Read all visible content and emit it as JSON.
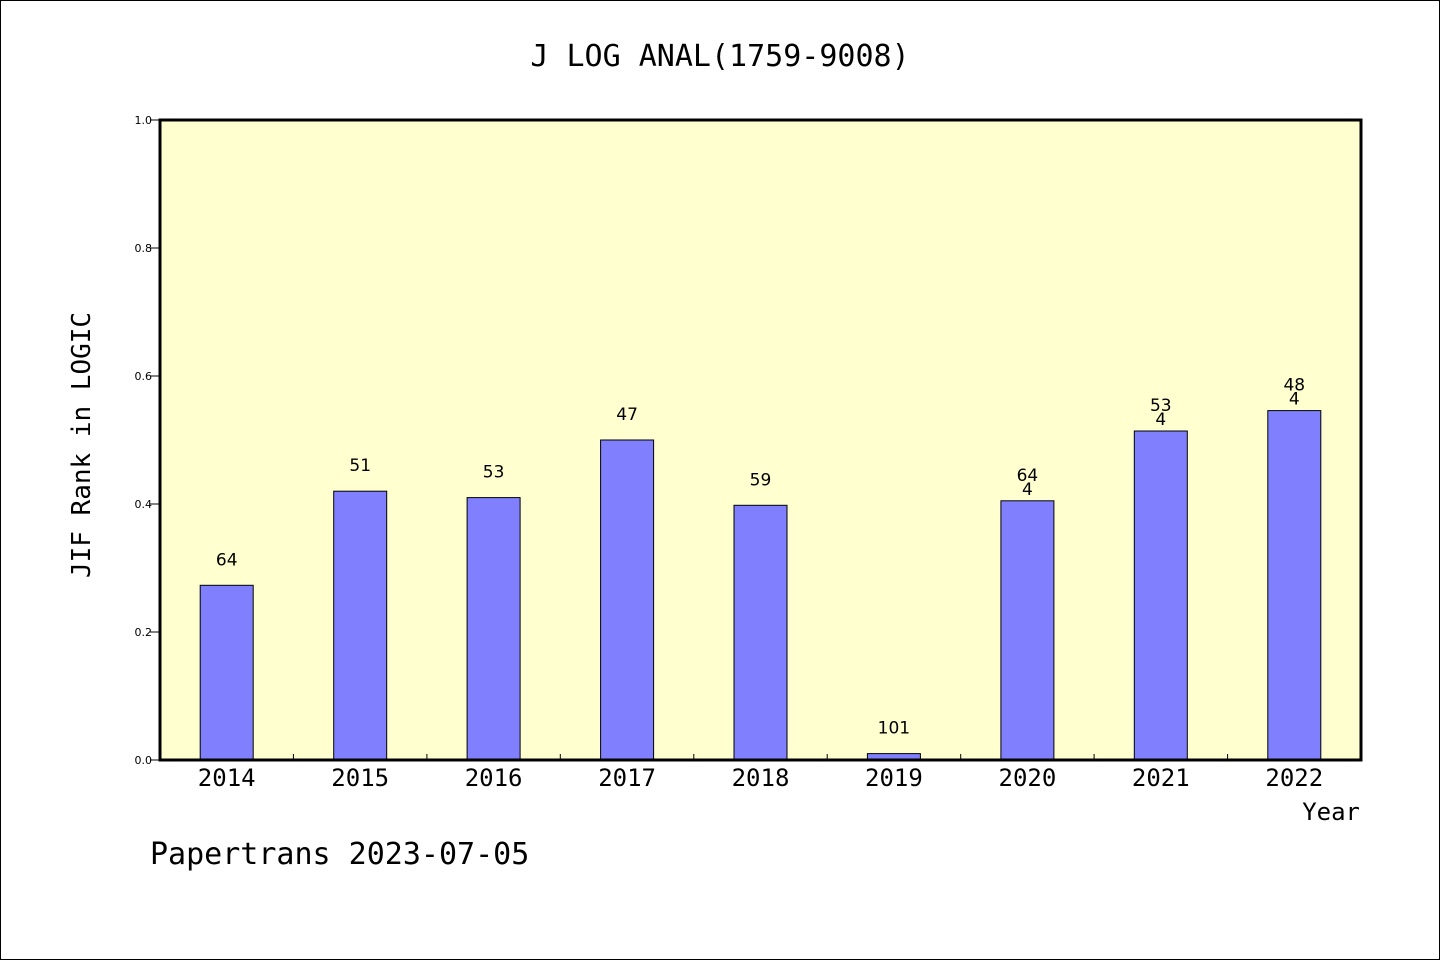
{
  "chart_data": {
    "type": "bar",
    "title": "J LOG ANAL(1759-9008)",
    "xlabel": "Year",
    "ylabel": "JIF Rank in LOGIC",
    "categories": [
      "2014",
      "2015",
      "2016",
      "2017",
      "2018",
      "2019",
      "2020",
      "2021",
      "2022"
    ],
    "values": [
      0.273,
      0.42,
      0.41,
      0.5,
      0.398,
      0.01,
      0.405,
      0.514,
      0.546
    ],
    "bar_labels": [
      "64",
      "51",
      "53",
      "47",
      "59",
      "101",
      "64\n4",
      "53\n4",
      "48\n4"
    ],
    "ylim": [
      0,
      1.0
    ],
    "yticks": [
      "0.0",
      "0.2",
      "0.4",
      "0.6",
      "0.8",
      "1.0"
    ],
    "grid": false,
    "legend": "none",
    "colors": {
      "bar": "#8080ff",
      "plot_background": "#ffffd0",
      "axis": "#000000"
    }
  },
  "footer": {
    "credit": "Papertrans 2023-07-05"
  }
}
